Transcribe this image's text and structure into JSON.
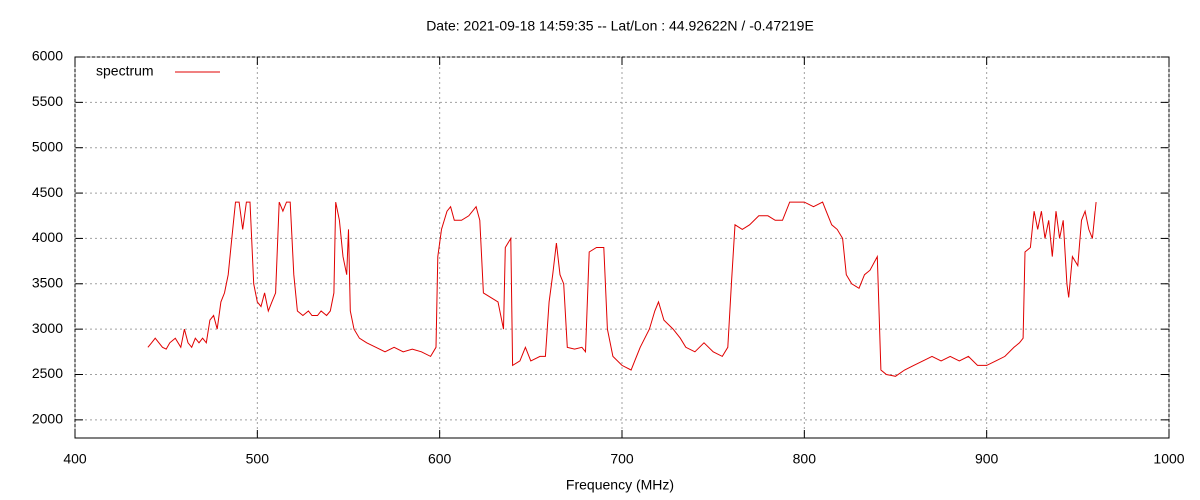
{
  "chart_data": {
    "type": "line",
    "title": "Date: 2021-09-18 14:59:35  --  Lat/Lon : 44.92622N / -0.47219E",
    "x_label": "Frequency (MHz)",
    "xlim": [
      400,
      1000
    ],
    "xticks": [
      400,
      500,
      600,
      700,
      800,
      900,
      1000
    ],
    "ylim": [
      1800,
      6000
    ],
    "yticks": [
      2000,
      2500,
      3000,
      3500,
      4000,
      4500,
      5000,
      5500,
      6000
    ],
    "grid": true,
    "legend": "top-left",
    "series": [
      {
        "name": "spectrum",
        "color": "#e00000",
        "x": [
          440,
          442,
          444,
          446,
          448,
          450,
          452,
          455,
          458,
          460,
          462,
          464,
          466,
          468,
          470,
          472,
          474,
          476,
          478,
          480,
          482,
          484,
          486,
          488,
          490,
          492,
          494,
          496,
          498,
          500,
          502,
          504,
          506,
          508,
          510,
          512,
          514,
          516,
          518,
          520,
          522,
          525,
          528,
          530,
          533,
          535,
          538,
          540,
          542,
          543,
          545,
          547,
          549,
          550,
          551,
          553,
          556,
          560,
          565,
          570,
          575,
          580,
          585,
          590,
          595,
          598,
          599,
          601,
          604,
          606,
          608,
          612,
          616,
          620,
          622,
          624,
          628,
          632,
          635,
          636,
          639,
          640,
          644,
          647,
          650,
          655,
          658,
          660,
          662,
          664,
          666,
          668,
          670,
          674,
          678,
          680,
          682,
          686,
          690,
          692,
          695,
          700,
          705,
          710,
          715,
          718,
          720,
          723,
          728,
          732,
          735,
          740,
          745,
          750,
          755,
          758,
          760,
          762,
          766,
          770,
          775,
          780,
          784,
          788,
          792,
          800,
          805,
          810,
          812,
          815,
          818,
          821,
          823,
          826,
          830,
          833,
          836,
          840,
          842,
          845,
          850,
          855,
          860,
          865,
          870,
          875,
          880,
          885,
          890,
          895,
          900,
          905,
          910,
          915,
          918,
          920,
          921,
          924,
          926,
          928,
          930,
          932,
          934,
          936,
          938,
          940,
          942,
          944,
          945,
          947,
          950,
          952,
          954,
          956,
          958,
          960
        ],
        "values": [
          2800,
          2850,
          2900,
          2850,
          2800,
          2780,
          2850,
          2900,
          2800,
          3000,
          2850,
          2800,
          2900,
          2850,
          2900,
          2850,
          3100,
          3150,
          3000,
          3300,
          3400,
          3600,
          4000,
          4400,
          4400,
          4100,
          4400,
          4400,
          3500,
          3300,
          3250,
          3400,
          3200,
          3300,
          3400,
          4400,
          4300,
          4400,
          4400,
          3600,
          3200,
          3150,
          3200,
          3150,
          3150,
          3200,
          3150,
          3200,
          3400,
          4400,
          4200,
          3800,
          3600,
          4100,
          3200,
          3000,
          2900,
          2850,
          2800,
          2750,
          2800,
          2750,
          2780,
          2750,
          2700,
          2800,
          3800,
          4100,
          4300,
          4350,
          4200,
          4200,
          4250,
          4350,
          4200,
          3400,
          3350,
          3300,
          3000,
          3900,
          4000,
          2600,
          2650,
          2800,
          2650,
          2700,
          2700,
          3300,
          3600,
          3950,
          3600,
          3500,
          2800,
          2780,
          2800,
          2750,
          3850,
          3900,
          3900,
          3000,
          2700,
          2600,
          2550,
          2800,
          3000,
          3200,
          3300,
          3100,
          3000,
          2900,
          2800,
          2750,
          2850,
          2750,
          2700,
          2800,
          3500,
          4150,
          4100,
          4150,
          4250,
          4250,
          4200,
          4200,
          4400,
          4400,
          4350,
          4400,
          4300,
          4150,
          4100,
          4000,
          3600,
          3500,
          3450,
          3600,
          3650,
          3800,
          2550,
          2500,
          2480,
          2550,
          2600,
          2650,
          2700,
          2650,
          2700,
          2650,
          2700,
          2600,
          2600,
          2650,
          2700,
          2800,
          2850,
          2900,
          3850,
          3900,
          4300,
          4100,
          4300,
          4000,
          4200,
          3800,
          4300,
          4000,
          4200,
          3500,
          3350,
          3800,
          3700,
          4200,
          4300,
          4100,
          4000,
          4400
        ]
      }
    ]
  }
}
